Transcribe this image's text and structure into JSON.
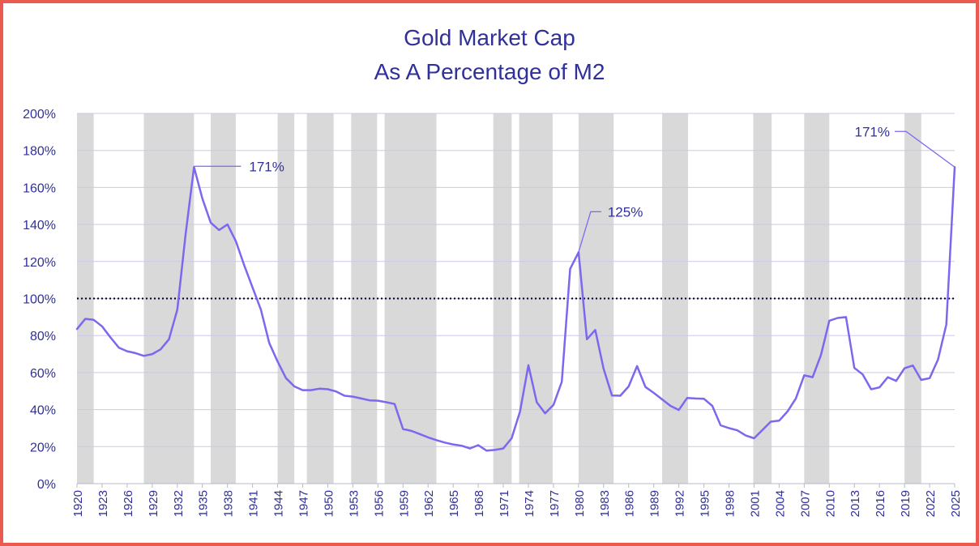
{
  "chart_data": {
    "type": "line",
    "title": "Gold Market Cap",
    "subtitle": "As A Percentage of M2",
    "xlabel": "",
    "ylabel": "",
    "xlim": [
      1920,
      2025
    ],
    "ylim": [
      0,
      200
    ],
    "y_ticks": [
      "0%",
      "20%",
      "40%",
      "60%",
      "80%",
      "100%",
      "120%",
      "140%",
      "160%",
      "180%",
      "200%"
    ],
    "x_ticks": [
      "1920",
      "1923",
      "1926",
      "1929",
      "1932",
      "1935",
      "1938",
      "1941",
      "1944",
      "1947",
      "1950",
      "1953",
      "1956",
      "1959",
      "1962",
      "1965",
      "1968",
      "1971",
      "1974",
      "1977",
      "1980",
      "1983",
      "1986",
      "1989",
      "1992",
      "1995",
      "1998",
      "2001",
      "2004",
      "2007",
      "2010",
      "2013",
      "2016",
      "2019",
      "2022",
      "2025"
    ],
    "reference_line": {
      "value": 100,
      "style": "dotted"
    },
    "recessions": [
      [
        1920,
        1922
      ],
      [
        1928,
        1934
      ],
      [
        1936,
        1939
      ],
      [
        1944,
        1946
      ],
      [
        1947.5,
        1950.7
      ],
      [
        1952.8,
        1955.9
      ],
      [
        1956.8,
        1963
      ],
      [
        1969.8,
        1972
      ],
      [
        1972.9,
        1976.9
      ],
      [
        1980,
        1984.2
      ],
      [
        1990,
        1993.1
      ],
      [
        2000.9,
        2003.1
      ],
      [
        2007,
        2010
      ],
      [
        2019,
        2021
      ]
    ],
    "series": [
      {
        "name": "Gold Market Cap / M2",
        "color": "#7b68ee",
        "x": [
          1920,
          1921,
          1922,
          1923,
          1924,
          1925,
          1926,
          1927,
          1928,
          1929,
          1930,
          1931,
          1932,
          1933,
          1934,
          1935,
          1936,
          1937,
          1938,
          1939,
          1940,
          1941,
          1942,
          1943,
          1944,
          1945,
          1946,
          1947,
          1948,
          1949,
          1950,
          1951,
          1952,
          1953,
          1954,
          1955,
          1956,
          1957,
          1958,
          1959,
          1960,
          1961,
          1962,
          1963,
          1964,
          1965,
          1966,
          1967,
          1968,
          1969,
          1970,
          1971,
          1972,
          1973,
          1974,
          1975,
          1976,
          1977,
          1978,
          1979,
          1980,
          1981,
          1982,
          1983,
          1984,
          1985,
          1986,
          1987,
          1988,
          1989,
          1990,
          1991,
          1992,
          1993,
          1994,
          1995,
          1996,
          1997,
          1998,
          1999,
          2000,
          2001,
          2002,
          2003,
          2004,
          2005,
          2006,
          2007,
          2008,
          2009,
          2010,
          2011,
          2012,
          2013,
          2014,
          2015,
          2016,
          2017,
          2018,
          2019,
          2020,
          2021,
          2022,
          2023,
          2024,
          2025
        ],
        "values": [
          83.5,
          89,
          88.5,
          85,
          79,
          73.5,
          71.5,
          70.5,
          69,
          70,
          72.5,
          78,
          94,
          135,
          171,
          154,
          141,
          137,
          140,
          131,
          118,
          106,
          94,
          76,
          66,
          57,
          52.5,
          50.5,
          50.5,
          51.3,
          51,
          49.8,
          47.5,
          47,
          46,
          45,
          44.8,
          44,
          43,
          29.5,
          28.5,
          26.8,
          25,
          23.5,
          22.2,
          21.2,
          20.5,
          19,
          20.8,
          17.8,
          18.2,
          19,
          24.5,
          39,
          64,
          44,
          38,
          42.5,
          55,
          116,
          125,
          78,
          83,
          62,
          47.6,
          47.5,
          52.5,
          63.5,
          52.2,
          49,
          45.5,
          42,
          39.8,
          46.3,
          46,
          45.8,
          42,
          31.5,
          30,
          28.8,
          26,
          24.5,
          29,
          33.5,
          34,
          39,
          46,
          58.5,
          57.5,
          69.5,
          88,
          89.5,
          90,
          62.5,
          59,
          51,
          52,
          57.5,
          55.5,
          62.3,
          63.8,
          56,
          57,
          67,
          86,
          171
        ]
      }
    ],
    "annotations": [
      {
        "label": "171%",
        "x": 1934,
        "y": 171,
        "side": "right"
      },
      {
        "label": "125%",
        "x": 1980,
        "y": 125,
        "side": "right"
      },
      {
        "label": "171%",
        "x": 2025,
        "y": 171,
        "side": "left"
      }
    ]
  }
}
